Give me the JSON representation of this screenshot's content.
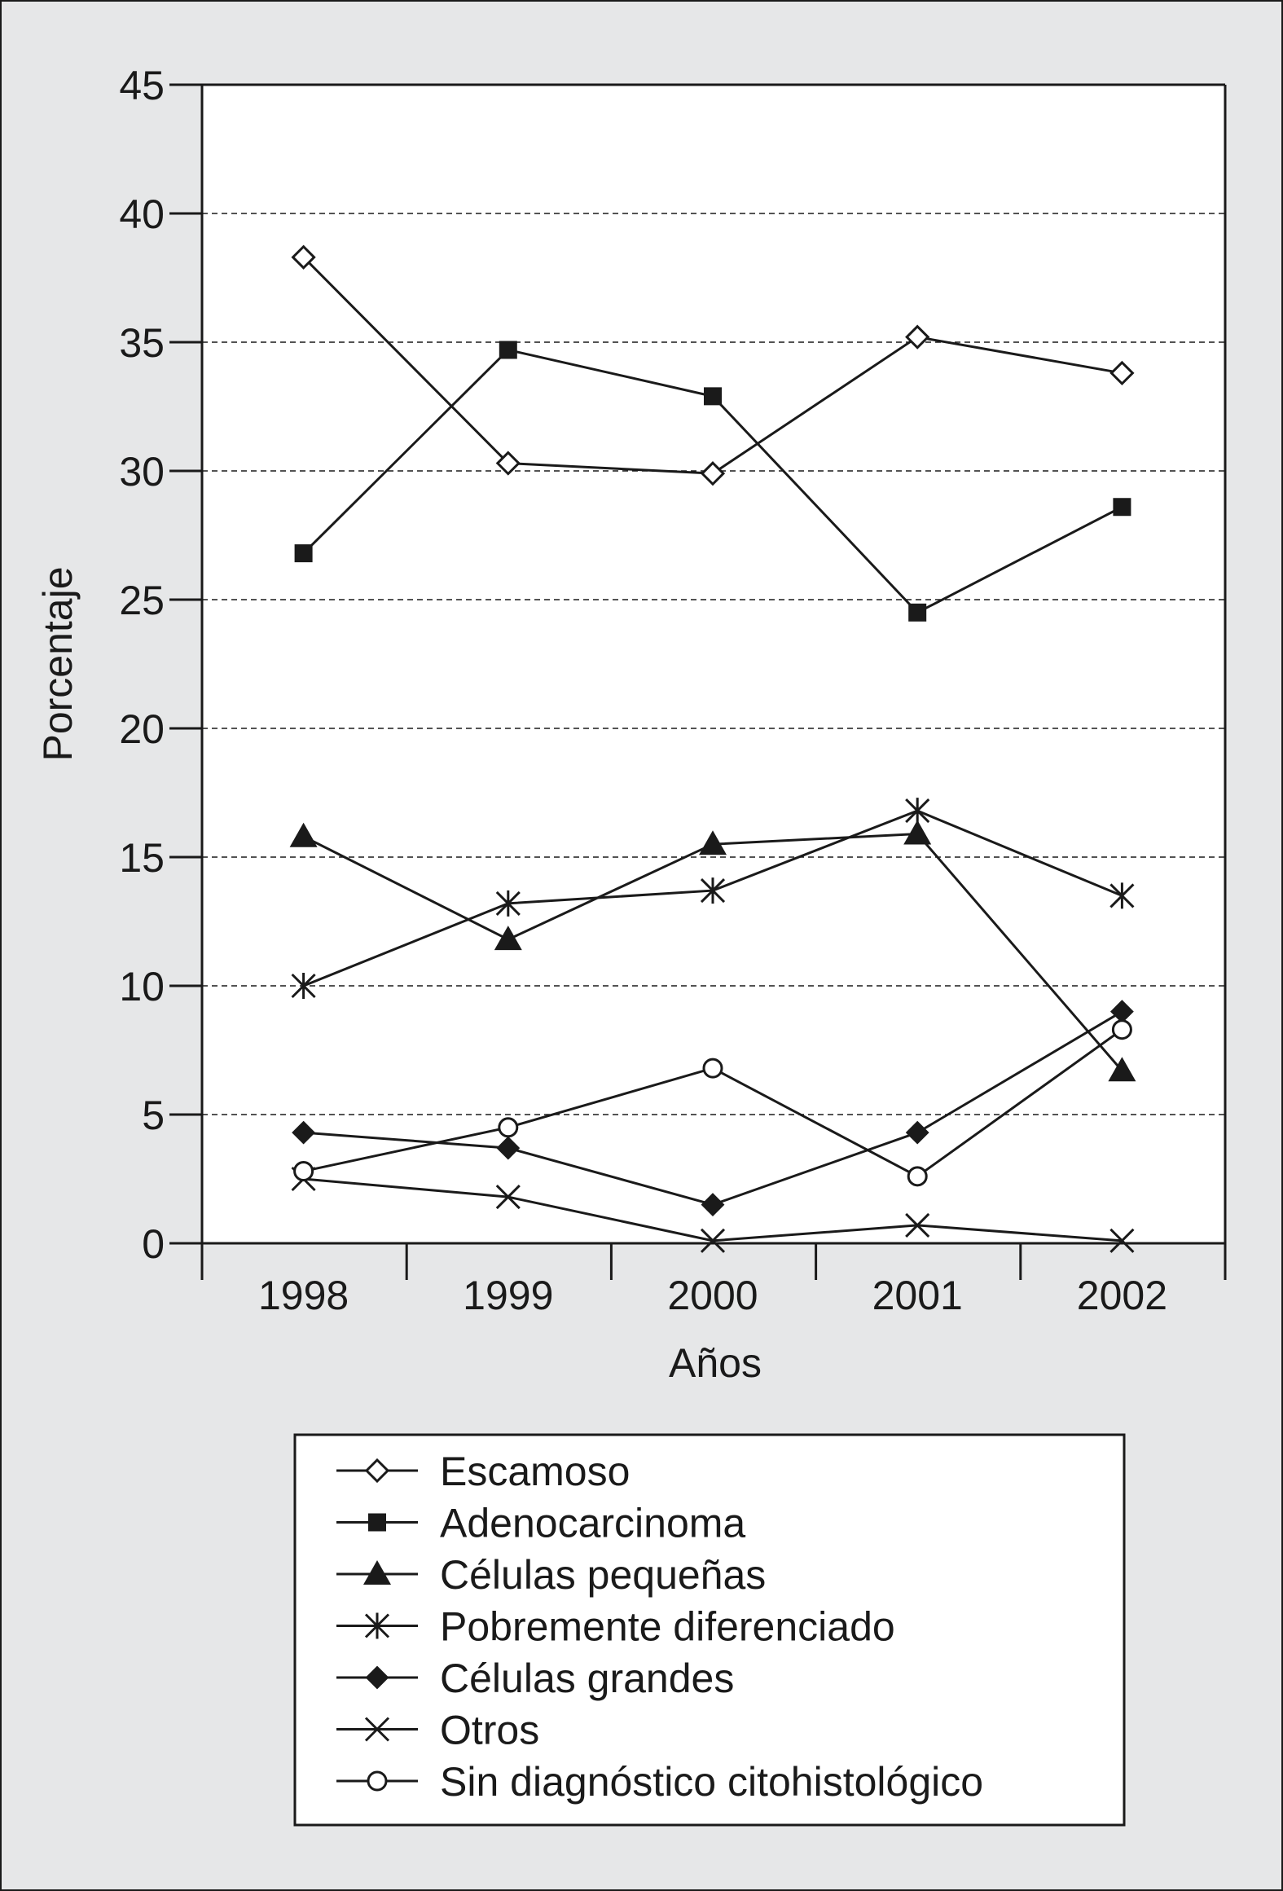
{
  "chart_data": {
    "type": "line",
    "title": "",
    "xlabel": "Años",
    "ylabel": "Porcentaje",
    "categories": [
      "1998",
      "1999",
      "2000",
      "2001",
      "2002"
    ],
    "ylim": [
      0,
      45
    ],
    "yticks": [
      0,
      5,
      10,
      15,
      20,
      25,
      30,
      35,
      40,
      45
    ],
    "ytick_labels": [
      "0",
      "5",
      "10",
      "15",
      "20",
      "25",
      "30",
      "35",
      "40",
      "45"
    ],
    "grid": "horizontal dashed",
    "legend_position": "bottom",
    "series": [
      {
        "name": "Escamoso",
        "marker": "open-diamond",
        "values": [
          38.3,
          30.3,
          29.9,
          35.2,
          33.8
        ]
      },
      {
        "name": "Adenocarcinoma",
        "marker": "filled-square",
        "values": [
          26.8,
          34.7,
          32.9,
          24.5,
          28.6
        ]
      },
      {
        "name": "Células pequeñas",
        "marker": "filled-triangle",
        "values": [
          15.8,
          11.8,
          15.5,
          15.9,
          6.7
        ]
      },
      {
        "name": "Pobremente diferenciado",
        "marker": "asterisk",
        "values": [
          10.0,
          13.2,
          13.7,
          16.8,
          13.5
        ]
      },
      {
        "name": "Células grandes",
        "marker": "filled-diamond",
        "values": [
          4.3,
          3.7,
          1.5,
          4.3,
          9.0
        ]
      },
      {
        "name": "Otros",
        "marker": "cross",
        "values": [
          2.5,
          1.8,
          0.1,
          0.7,
          0.1
        ]
      },
      {
        "name": "Sin diagnóstico citohistológico",
        "marker": "open-circle",
        "values": [
          2.8,
          4.5,
          6.8,
          2.6,
          8.3
        ]
      }
    ],
    "colors": {
      "frame_background": "#e6e7e8",
      "plot_background": "#ffffff",
      "ink": "#1a1a1a"
    }
  }
}
